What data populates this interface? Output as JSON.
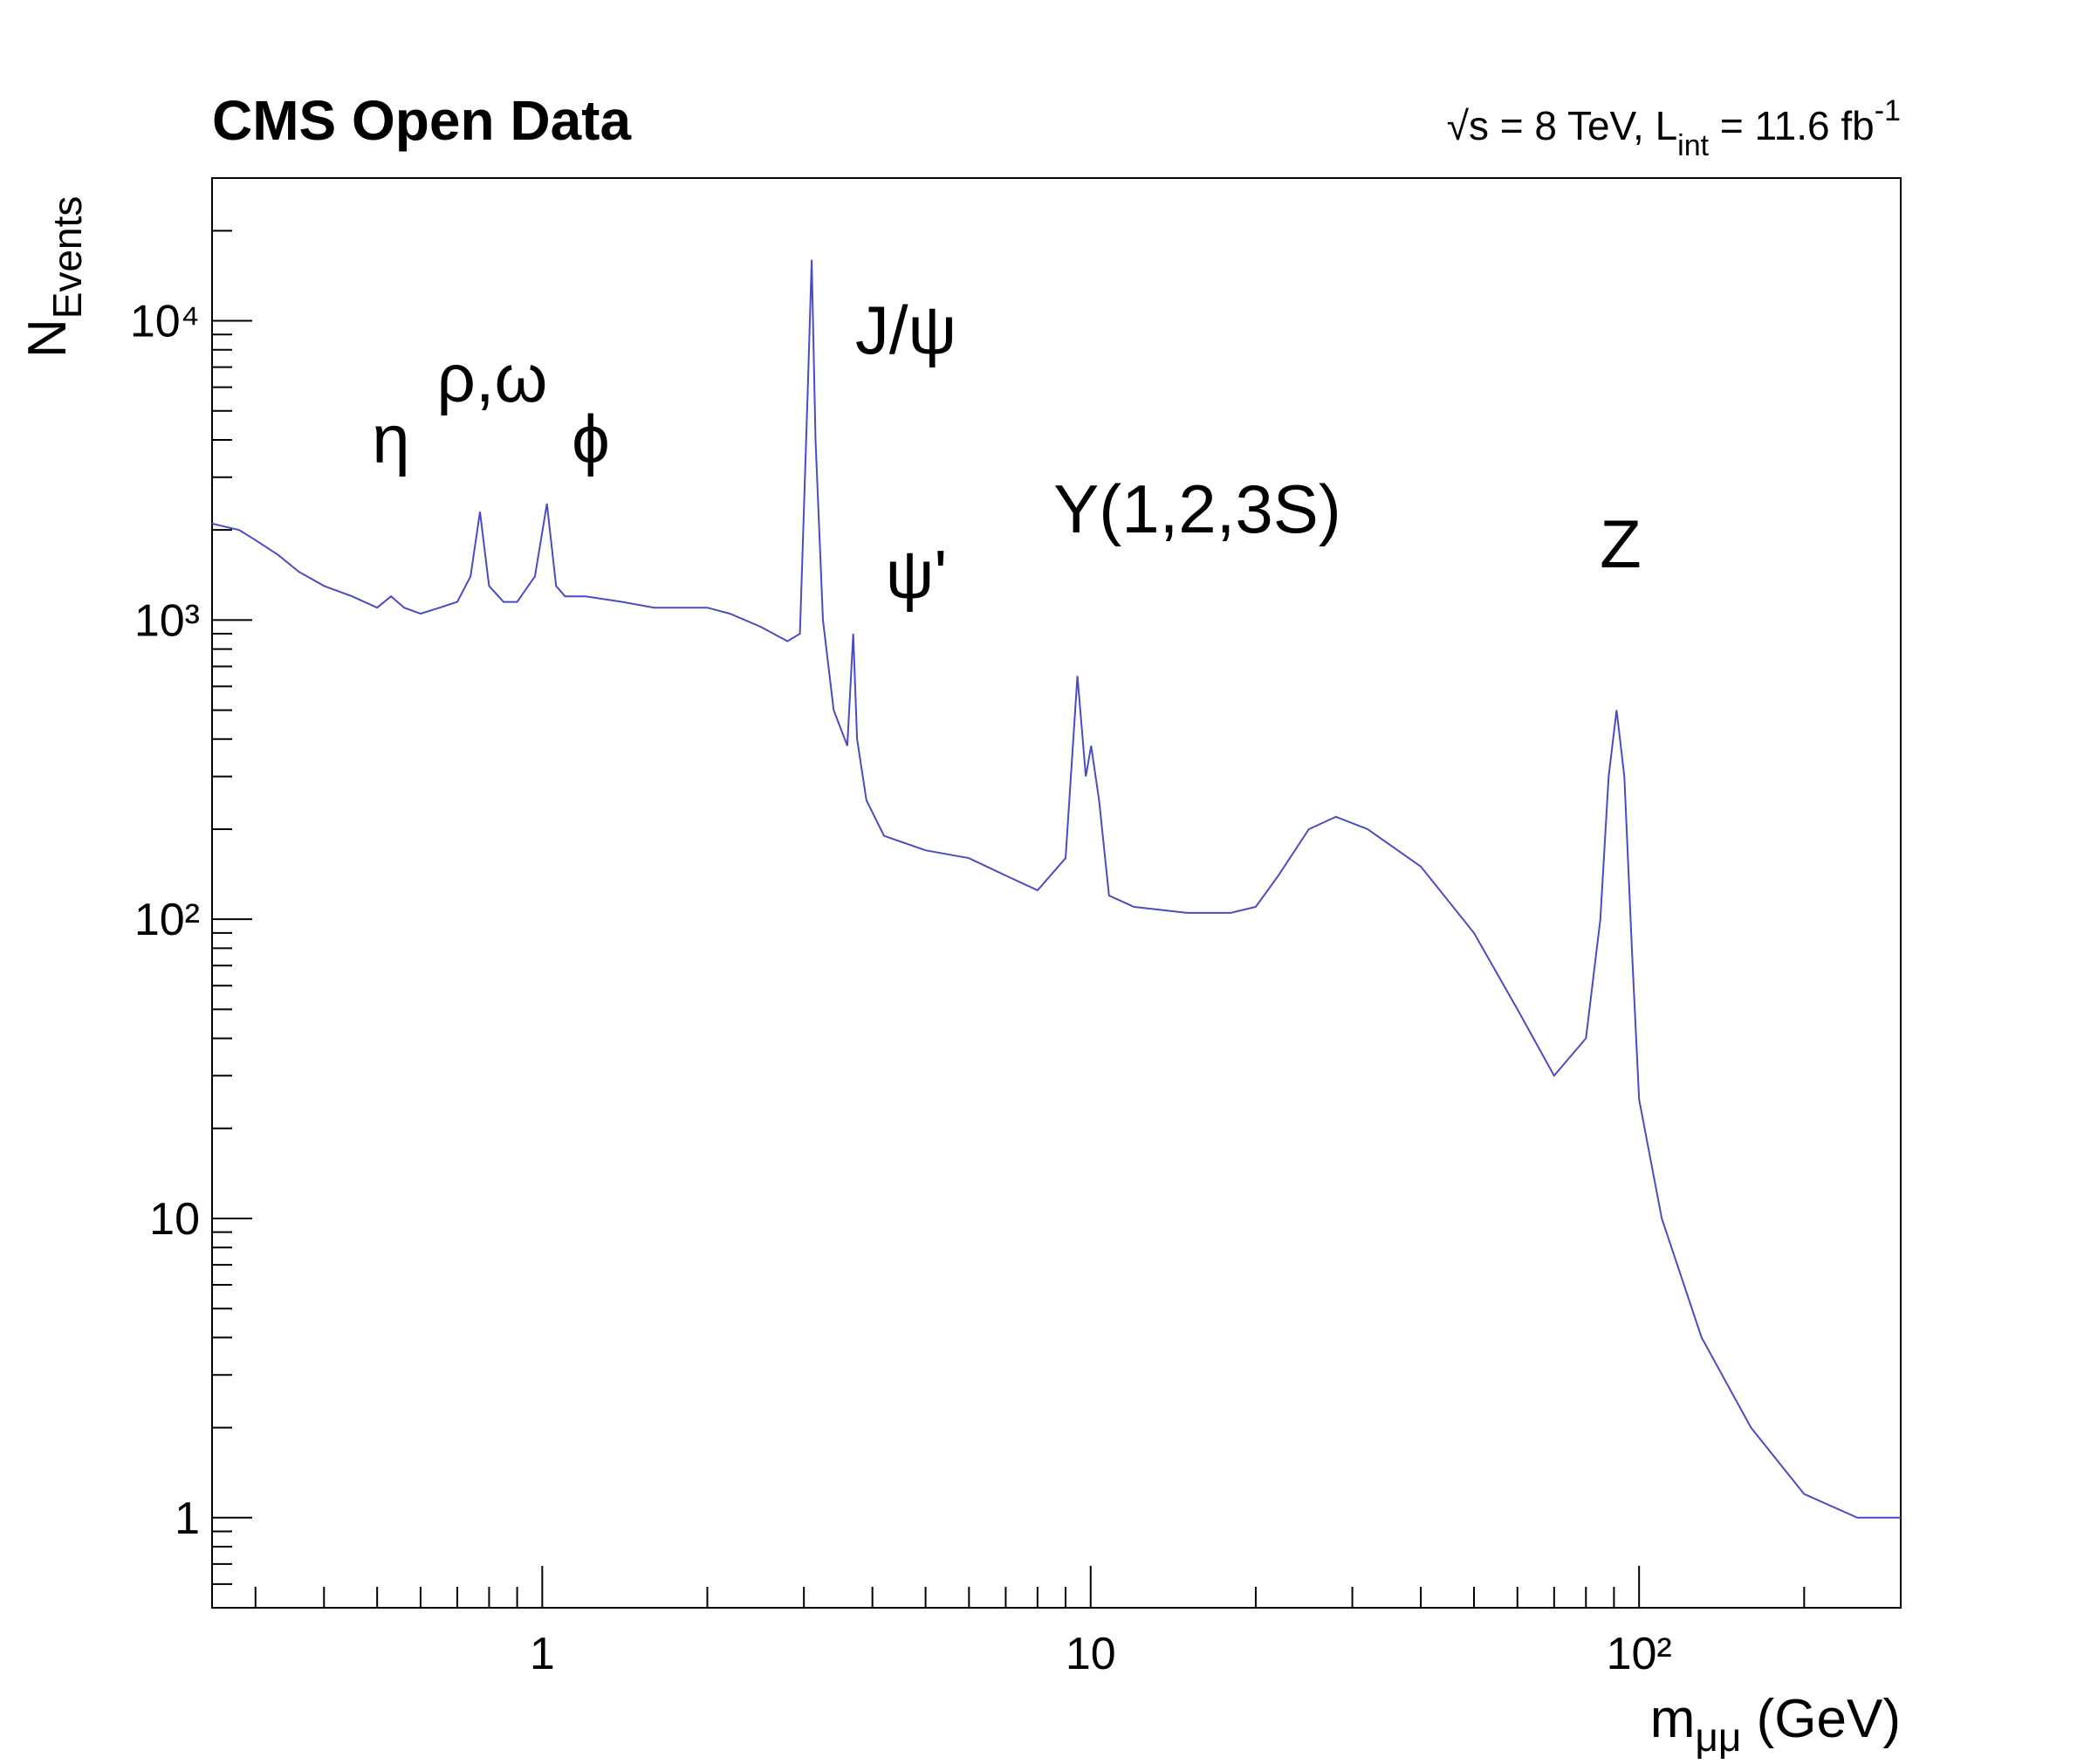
{
  "chart_data": {
    "type": "line",
    "title": "CMS Open Data",
    "energy_label": [
      "√s = 8 TeV, L",
      "int",
      " = 11.6 fb",
      "-1"
    ],
    "y_label": [
      "N",
      "Events"
    ],
    "x_label": [
      "m",
      "μμ",
      " (GeV)"
    ],
    "annotations": [
      "η",
      "ρ,ω",
      "ϕ",
      "J/ψ",
      "ψ'",
      "Υ(1,2,3S)",
      "Z"
    ],
    "log_x": true,
    "log_y": true,
    "xlim": [
      0.25,
      300
    ],
    "ylim": [
      0.5,
      30000
    ],
    "xticks": [
      1,
      10,
      {
        "value": 100,
        "label": "10²"
      }
    ],
    "yticks": [
      1,
      10,
      {
        "value": 100,
        "label": "10²"
      },
      {
        "value": 1000,
        "label": "10³"
      },
      {
        "value": 10000,
        "label": "10⁴"
      }
    ],
    "xminorticks": [
      0.3,
      0.4,
      0.5,
      0.6,
      0.7,
      0.8,
      0.9,
      2,
      3,
      4,
      5,
      6,
      7,
      8,
      9,
      20,
      30,
      40,
      50,
      60,
      70,
      80,
      90,
      200,
      300
    ],
    "yminorticks": [
      0.6,
      0.7,
      0.8,
      0.9,
      2,
      3,
      4,
      5,
      6,
      7,
      8,
      9,
      20,
      30,
      40,
      50,
      60,
      70,
      80,
      90,
      200,
      300,
      400,
      500,
      600,
      700,
      800,
      900,
      2000,
      3000,
      4000,
      5000,
      6000,
      7000,
      8000,
      9000,
      20000
    ],
    "series": [
      {
        "color": "#4b4bc3",
        "x": [
          0.25,
          0.28,
          0.3,
          0.33,
          0.36,
          0.4,
          0.45,
          0.5,
          0.53,
          0.56,
          0.6,
          0.65,
          0.7,
          0.74,
          0.77,
          0.8,
          0.85,
          0.9,
          0.97,
          1.02,
          1.06,
          1.1,
          1.2,
          1.4,
          1.6,
          1.8,
          2.0,
          2.2,
          2.5,
          2.8,
          2.95,
          3.05,
          3.1,
          3.15,
          3.25,
          3.4,
          3.6,
          3.69,
          3.75,
          3.9,
          4.2,
          5,
          6,
          7,
          8,
          9,
          9.46,
          9.8,
          10.02,
          10.36,
          10.8,
          12,
          15,
          18,
          20,
          22,
          25,
          28,
          32,
          40,
          50,
          60,
          70,
          80,
          85,
          88,
          91,
          94,
          97,
          100,
          110,
          130,
          160,
          200,
          250,
          300
        ],
        "values": [
          2100,
          2000,
          1850,
          1650,
          1450,
          1300,
          1200,
          1100,
          1200,
          1100,
          1050,
          1100,
          1150,
          1400,
          2300,
          1300,
          1150,
          1150,
          1400,
          2450,
          1300,
          1200,
          1200,
          1150,
          1100,
          1100,
          1100,
          1050,
          950,
          850,
          900,
          6000,
          16000,
          4000,
          1000,
          500,
          380,
          900,
          400,
          250,
          190,
          170,
          160,
          140,
          125,
          160,
          650,
          300,
          380,
          250,
          120,
          110,
          105,
          105,
          110,
          140,
          200,
          220,
          200,
          150,
          90,
          50,
          30,
          40,
          100,
          300,
          500,
          300,
          80,
          25,
          10,
          4,
          2,
          1.2,
          1,
          1
        ]
      }
    ]
  }
}
